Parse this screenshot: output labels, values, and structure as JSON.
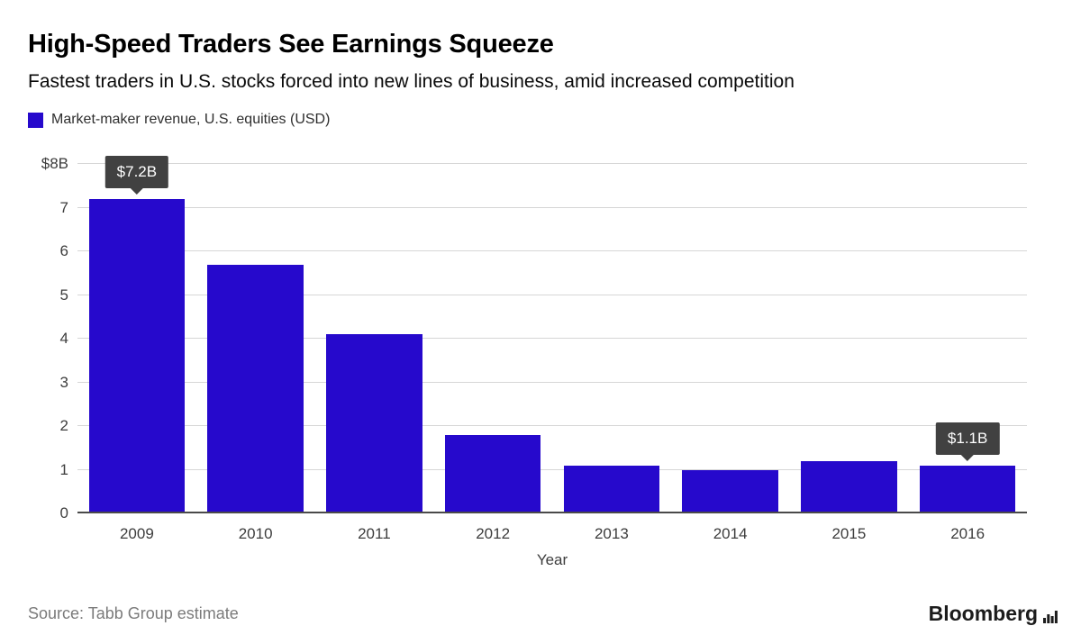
{
  "header": {
    "title": "High-Speed Traders See Earnings Squeeze",
    "subtitle": "Fastest traders in U.S. stocks forced into new lines of business, amid increased competition"
  },
  "legend": {
    "label": "Market-maker revenue, U.S. equities (USD)",
    "color": "#2609cc"
  },
  "chart_data": {
    "type": "bar",
    "title": "Market-maker revenue, U.S. equities (USD)",
    "categories": [
      "2009",
      "2010",
      "2011",
      "2012",
      "2013",
      "2014",
      "2015",
      "2016"
    ],
    "values": [
      7.2,
      5.7,
      4.1,
      1.8,
      1.1,
      1.0,
      1.2,
      1.1
    ],
    "xlabel": "Year",
    "ylabel": "",
    "ylim": [
      0,
      8
    ],
    "ytick_labels": [
      "0",
      "1",
      "2",
      "3",
      "4",
      "5",
      "6",
      "7",
      "$8B"
    ],
    "bar_color": "#2609cc",
    "grid": true,
    "gridline_color": "#d6d6d6",
    "legend_position": "top-left",
    "annotations": [
      {
        "category": "2009",
        "label": "$7.2B"
      },
      {
        "category": "2016",
        "label": "$1.1B"
      }
    ]
  },
  "footer": {
    "source": "Source: Tabb Group estimate",
    "brand": "Bloomberg"
  }
}
